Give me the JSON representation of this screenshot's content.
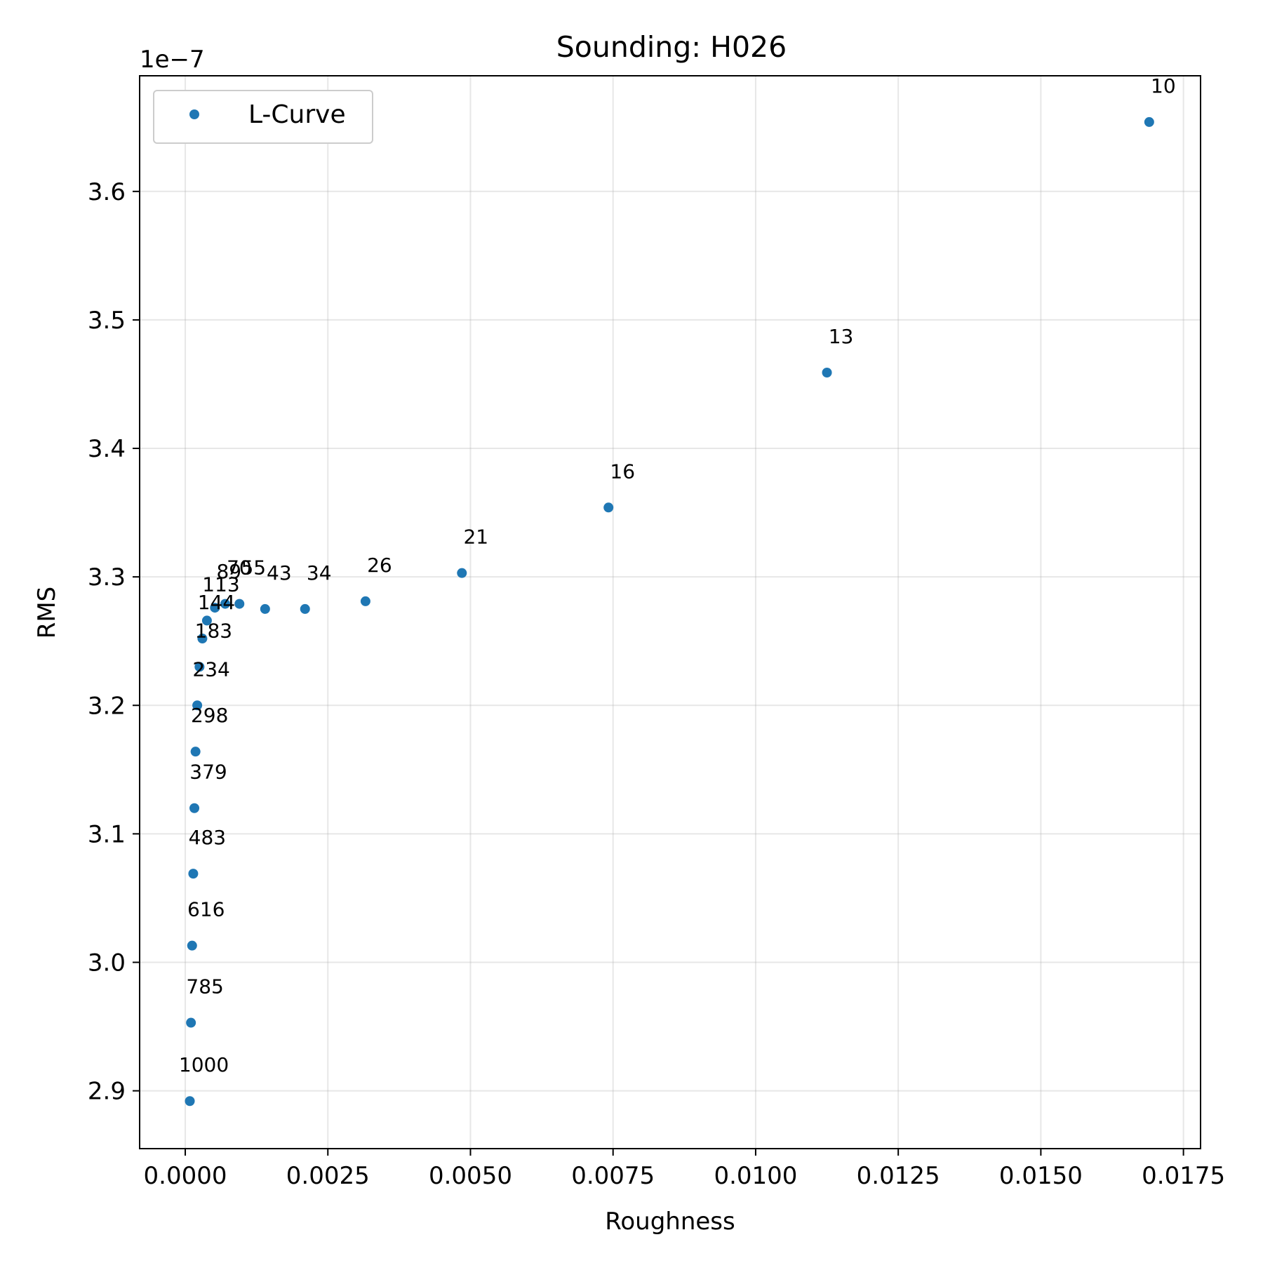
{
  "chart_data": {
    "type": "scatter",
    "title": "Sounding: H026",
    "xlabel": "Roughness",
    "ylabel": "RMS",
    "y_offset_label": "1e−7",
    "xlim": [
      -0.0008,
      0.0178
    ],
    "ylim": [
      2.855,
      3.69
    ],
    "xticks": [
      0.0,
      0.0025,
      0.005,
      0.0075,
      0.01,
      0.0125,
      0.015,
      0.0175
    ],
    "xtick_labels": [
      "0.0000",
      "0.0025",
      "0.0050",
      "0.0075",
      "0.0100",
      "0.0125",
      "0.0150",
      "0.0175"
    ],
    "yticks": [
      2.9,
      3.0,
      3.1,
      3.2,
      3.3,
      3.4,
      3.5,
      3.6
    ],
    "ytick_labels": [
      "2.9",
      "3.0",
      "3.1",
      "3.2",
      "3.3",
      "3.4",
      "3.5",
      "3.6"
    ],
    "grid": true,
    "legend": "upper-left",
    "color": "#1f77b4",
    "series": [
      {
        "name": "L-Curve",
        "points": [
          {
            "x": 0.0169,
            "y": 3.654,
            "label": "10"
          },
          {
            "x": 0.01125,
            "y": 3.459,
            "label": "13"
          },
          {
            "x": 0.00742,
            "y": 3.354,
            "label": "16"
          },
          {
            "x": 0.00485,
            "y": 3.303,
            "label": "21"
          },
          {
            "x": 0.00316,
            "y": 3.281,
            "label": "26"
          },
          {
            "x": 0.0021,
            "y": 3.275,
            "label": "34"
          },
          {
            "x": 0.0014,
            "y": 3.275,
            "label": "43"
          },
          {
            "x": 0.00095,
            "y": 3.279,
            "label": "55"
          },
          {
            "x": 0.0007,
            "y": 3.279,
            "label": "70"
          },
          {
            "x": 0.00052,
            "y": 3.276,
            "label": "89"
          },
          {
            "x": 0.00038,
            "y": 3.266,
            "label": "113"
          },
          {
            "x": 0.0003,
            "y": 3.252,
            "label": "144"
          },
          {
            "x": 0.00025,
            "y": 3.23,
            "label": "183"
          },
          {
            "x": 0.00021,
            "y": 3.2,
            "label": "234"
          },
          {
            "x": 0.00018,
            "y": 3.164,
            "label": "298"
          },
          {
            "x": 0.00016,
            "y": 3.12,
            "label": "379"
          },
          {
            "x": 0.00014,
            "y": 3.069,
            "label": "483"
          },
          {
            "x": 0.00012,
            "y": 3.013,
            "label": "616"
          },
          {
            "x": 0.0001,
            "y": 2.953,
            "label": "785"
          },
          {
            "x": 8e-05,
            "y": 2.892,
            "label": "1000"
          }
        ]
      }
    ]
  }
}
